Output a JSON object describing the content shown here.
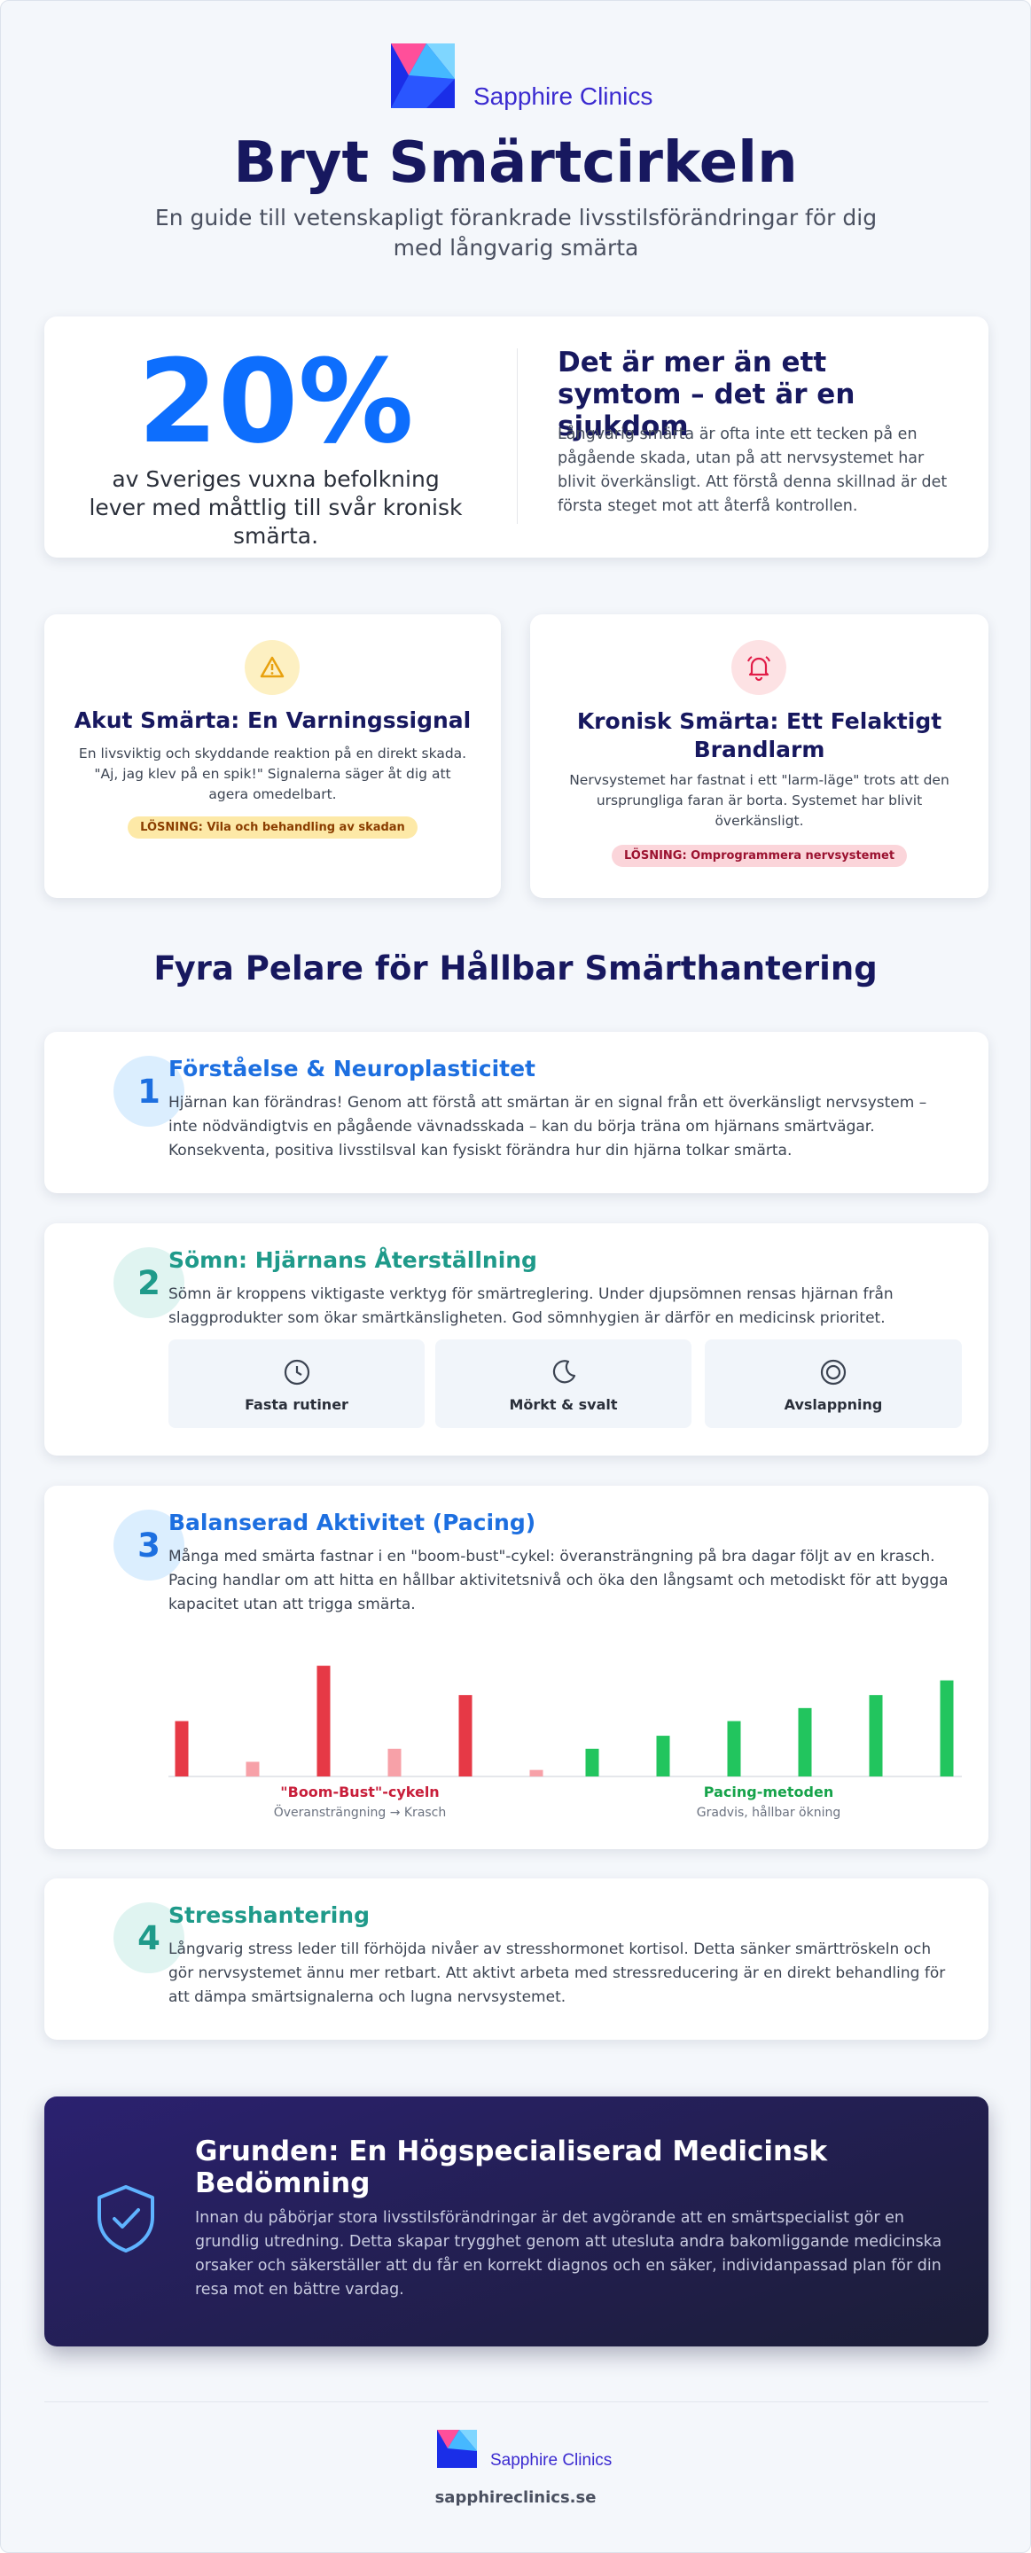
{
  "header": {
    "brand": "Sapphire Clinics",
    "title": "Bryt Smärtcirkeln",
    "subtitle": "En guide till vetenskapligt förankrade livsstilsförändringar för dig med långvarig smärta"
  },
  "stat": {
    "value": "20%",
    "caption": "av Sveriges vuxna befolkning lever med måttlig till svår kronisk smärta.",
    "heading": "Det är mer än ett symtom – det är en sjukdom",
    "text": "Långvarig smärta är ofta inte ett tecken på en pågående skada, utan på att nervsystemet har blivit överkänsligt. Att förstå denna skillnad är det första steget mot att återfå kontrollen."
  },
  "cards": [
    {
      "title": "Akut Smärta: En Varningssignal",
      "text": "En livsviktig och skyddande reaktion på en direkt skada. \"Aj, jag klev på en spik!\" Signalerna säger åt dig att agera omedelbart.",
      "solution": "LÖSNING: Vila och behandling av skadan"
    },
    {
      "title": "Kronisk Smärta: Ett Felaktigt Brandlarm",
      "text": "Nervsystemet har fastnat i ett \"larm-läge\" trots att den ursprungliga faran är borta. Systemet har blivit överkänsligt.",
      "solution": "LÖSNING: Omprogrammera nervsystemet"
    }
  ],
  "section_title": "Fyra Pelare för Hållbar Smärthantering",
  "pillars": [
    {
      "number": "1",
      "title": "Förståelse & Neuroplasticitet",
      "text": "Hjärnan kan förändras! Genom att förstå att smärtan är en signal från ett överkänsligt nervsystem – inte nödvändigtvis en pågående vävnadsskada – kan du börja träna om hjärnans smärtvägar. Konsekventa, positiva livsstilsval kan fysiskt förändra hur din hjärna tolkar smärta."
    },
    {
      "number": "2",
      "title": "Sömn: Hjärnans Återställning",
      "text": "Sömn är kroppens viktigaste verktyg för smärtreglering. Under djupsömnen rensas hjärnan från slaggprodukter som ökar smärtkänsligheten. God sömnhygien är därför en medicinsk prioritet.",
      "tiles": [
        "Fasta rutiner",
        "Mörkt & svalt",
        "Avslappning"
      ]
    },
    {
      "number": "3",
      "title": "Balanserad Aktivitet (Pacing)",
      "text": "Många med smärta fastnar i en \"boom-bust\"-cykel: överansträngning på bra dagar följt av en krasch. Pacing handlar om att hitta en hållbar aktivitetsnivå och öka den långsamt och metodiskt för att bygga kapacitet utan att trigga smärta.",
      "chart": {
        "type": "bar",
        "series": [
          {
            "name": "\"Boom-Bust\"-cykeln",
            "caption": "Överansträngning → Krasch",
            "color": "#c81e3a",
            "colors": [
              "#e63946",
              "#f7a1a8",
              "#e63946",
              "#f7a1a8",
              "#e63946",
              "#f7a1a8"
            ],
            "values": [
              34,
              9,
              68,
              17,
              50,
              4
            ]
          },
          {
            "name": "Pacing-metoden",
            "caption": "Gradvis, hållbar ökning",
            "color": "#16a34a",
            "colors": [
              "#22c55e",
              "#22c55e",
              "#22c55e",
              "#22c55e",
              "#22c55e",
              "#22c55e"
            ],
            "values": [
              17,
              25,
              34,
              42,
              50,
              59
            ]
          }
        ]
      }
    },
    {
      "number": "4",
      "title": "Stresshantering",
      "text": "Långvarig stress leder till förhöjda nivåer av stresshormonet kortisol. Detta sänker smärttröskeln och gör nervsystemet ännu mer retbart. Att aktivt arbeta med stressreducering är en direkt behandling för att dämpa smärtsignalerna och lugna nervsystemet."
    }
  ],
  "banner": {
    "title": "Grunden: En Högspecialiserad Medicinsk Bedömning",
    "text": "Innan du påbörjar stora livsstilsförändringar är det avgörande att en smärtspecialist gör en grundlig utredning. Detta skapar trygghet genom att utesluta andra bakomliggande medicinska orsaker och säkerställer att du får en korrekt diagnos och en säker, individanpassad plan för din resa mot en bättre vardag."
  },
  "footer": {
    "brand": "Sapphire Clinics",
    "url": "sapphireclinics.se"
  }
}
